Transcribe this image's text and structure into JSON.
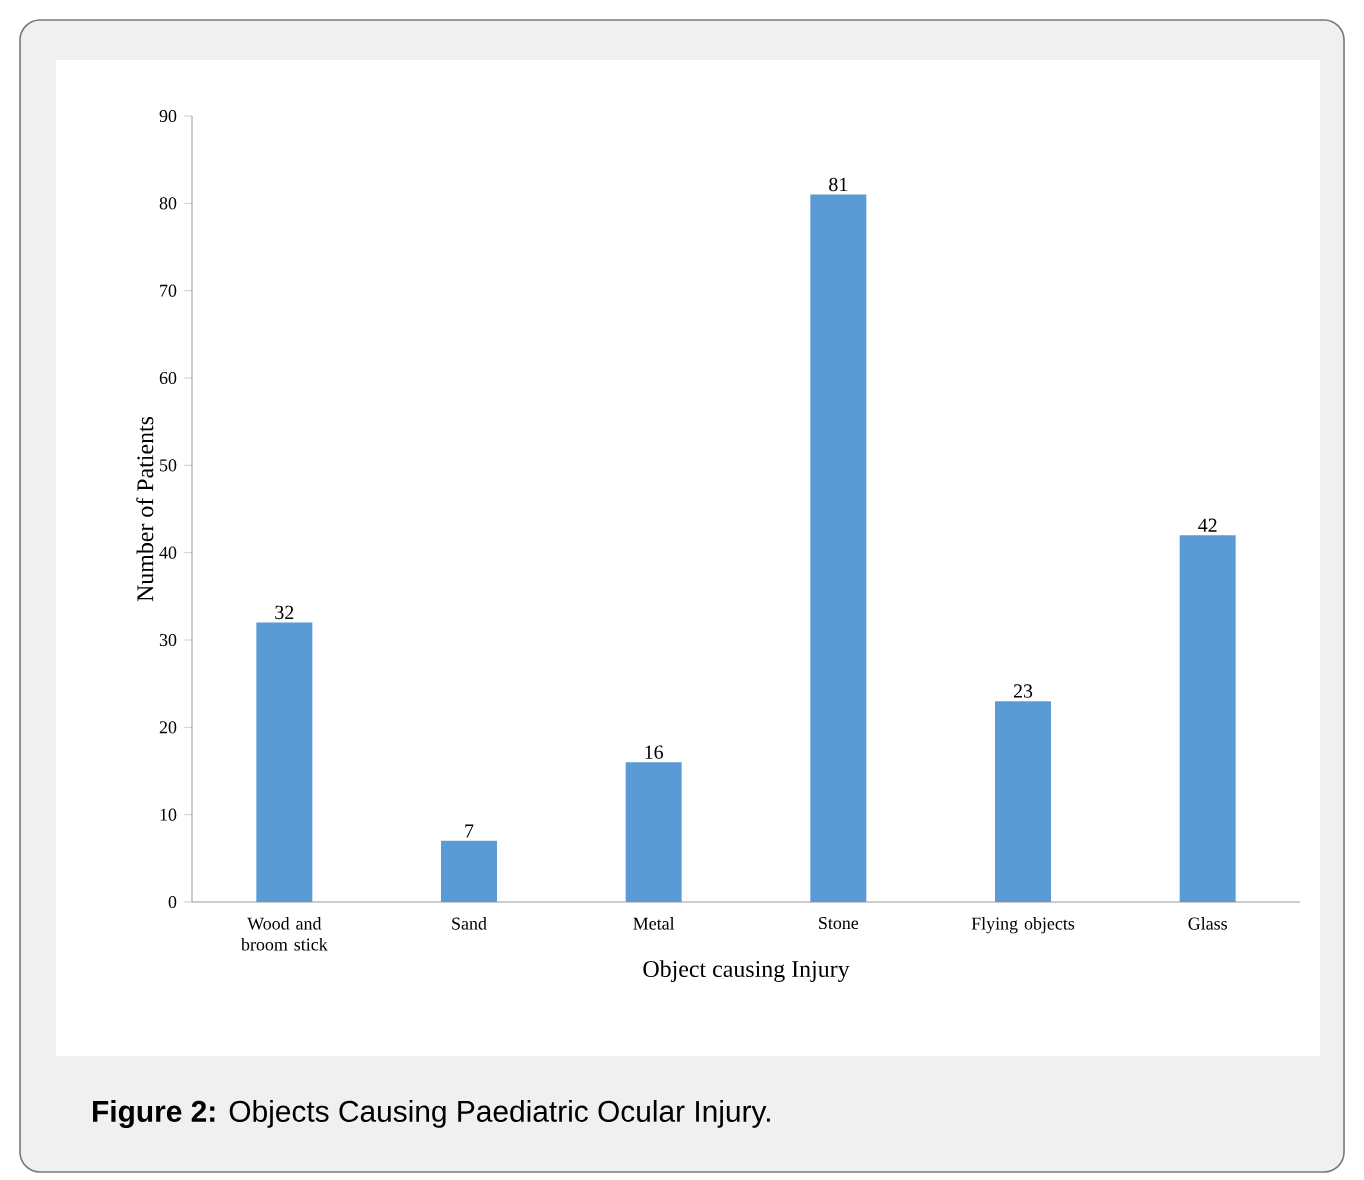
{
  "chart_data": {
    "type": "bar",
    "title": "**Figure 2:** Objects Causing Paediatric Ocular Injury.",
    "xlabel": "Object causing Injury",
    "ylabel": "Number of Patients",
    "categories": [
      "Wood and broom stick",
      "Sand",
      "Metal",
      "Stone",
      "Flying objects",
      "Glass"
    ],
    "values": [
      32,
      7,
      16,
      81,
      23,
      42
    ],
    "color": "#5b9bd5",
    "ylim": [
      0,
      90
    ],
    "yticks": [
      0,
      10,
      20,
      30,
      40,
      50,
      60,
      70,
      80,
      90
    ],
    "data_labels": true
  }
}
